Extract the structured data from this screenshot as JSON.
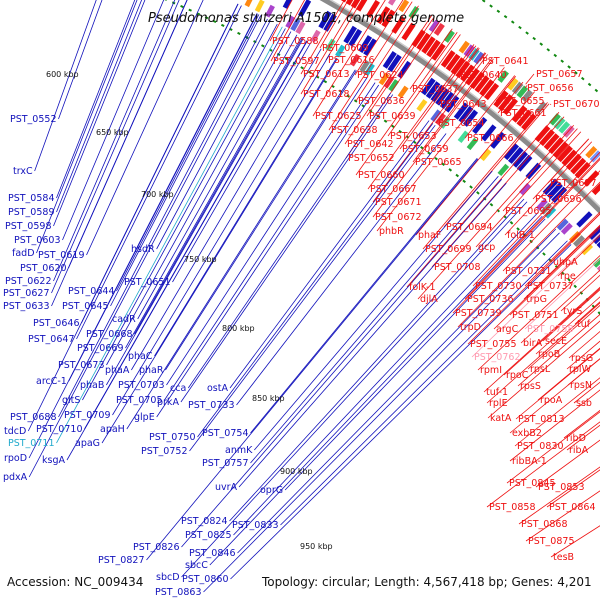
{
  "title": "Pseudomonas stutzeri A1501, complete genome",
  "footer": {
    "accession": "Accession: NC_009434",
    "summary": "Topology: circular; Length: 4,567,418 bp; Genes: 4,201"
  },
  "colors": {
    "forward": "#ee1111",
    "reverse": "#1111bb",
    "highlight_forward": "#ff9ab0",
    "highlight_reverse": "#22aacc",
    "backbone": "#8a8a8a",
    "tick_mark": "#118811"
  },
  "ticks": [
    "600 kbp",
    "650 kbp",
    "700 kbp",
    "750 kbp",
    "800 kbp",
    "850 kbp",
    "900 kbp",
    "950 kbp"
  ],
  "forward_labels": [
    "PST_0588",
    "PST_0609",
    "PST_0597",
    "PST_0616",
    "PST_0613",
    "PST_0624",
    "PST_0618",
    "PST_0641",
    "PST_0657",
    "PST_0640",
    "PST_0656",
    "PST_0637",
    "PST_0636",
    "PST_0643",
    "PST_0655",
    "PST_0670",
    "PST_0661",
    "PST_0625",
    "PST_0639",
    "PST_0654",
    "PST_0638",
    "PST_0653",
    "PST_0666",
    "PST_0642",
    "PST_0659",
    "PST_0652",
    "PST_0665",
    "PST_0660",
    "PST_0667",
    "PST_0671",
    "PST_0697",
    "PST_0696",
    "PST_0695",
    "PST_0672",
    "PST_0694",
    "phbR",
    "phaF",
    "folB-1",
    "PST_0699",
    "gcp",
    "uhpA",
    "PST_0708",
    "rpe",
    "PST_0731",
    "folK-1",
    "PST_0730",
    "PST_0737",
    "djlA",
    "PST_0736",
    "trpG",
    "tyrS",
    "PST_0739",
    "PST_0751",
    "tuf",
    "trpD",
    "argC",
    "PST_0758",
    "secE",
    "PST_0755",
    "birA",
    "rpsG",
    "PST_0762",
    "rpoB",
    "rpsL",
    "rplW",
    "rpmI",
    "rpoC",
    "rpsN",
    "tuf-1",
    "rpsS",
    "rplE",
    "rpoA",
    "ssb",
    "katA",
    "PST_0813",
    "exbB2",
    "ribD",
    "PST_0830",
    "ribA",
    "ribBA-1",
    "PST_0845",
    "PST_0853",
    "PST_0858",
    "PST_0864",
    "PST_0868",
    "PST_0875",
    "tesB"
  ],
  "reverse_labels": [
    "PST_0552",
    "trxC",
    "PST_0584",
    "PST_0589",
    "PST_0598",
    "PST_0603",
    "fadD",
    "PST_0619",
    "hsdR",
    "PST_0620",
    "PST_0622",
    "PST_0651",
    "PST_0627",
    "PST_0644",
    "PST_0633",
    "PST_0645",
    "PST_0646",
    "cadR",
    "PST_0668",
    "PST_0647",
    "PST_0669",
    "phaC",
    "PST_0673",
    "phaA",
    "phaR",
    "arcC-1",
    "phaB",
    "PST_0703",
    "cca",
    "gltS",
    "PST_0705",
    "prkA",
    "ostA",
    "PST_0688",
    "PST_0709",
    "PST_0733",
    "tdcD",
    "PST_0710",
    "glpE",
    "apaH",
    "PST_0711",
    "apaG",
    "rpoD",
    "ksgA",
    "PST_0750",
    "PST_0754",
    "PST_0752",
    "anmK",
    "PST_0757",
    "pdxA",
    "uvrA",
    "oprG",
    "PST_0824",
    "PST_0833",
    "PST_0825",
    "PST_0826",
    "PST_0846",
    "PST_0827",
    "sbcC",
    "sbcD",
    "PST_0860",
    "PST_0863"
  ]
}
